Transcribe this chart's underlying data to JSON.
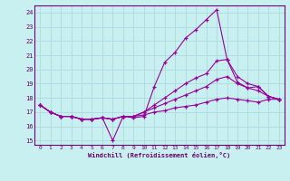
{
  "xlabel": "Windchill (Refroidissement éolien,°C)",
  "background_color": "#c8f0f0",
  "grid_color": "#b0dede",
  "line_color": "#990099",
  "xlim": [
    -0.5,
    23.5
  ],
  "ylim": [
    14.7,
    24.5
  ],
  "yticks": [
    15,
    16,
    17,
    18,
    19,
    20,
    21,
    22,
    23,
    24
  ],
  "xticks": [
    0,
    1,
    2,
    3,
    4,
    5,
    6,
    7,
    8,
    9,
    10,
    11,
    12,
    13,
    14,
    15,
    16,
    17,
    18,
    19,
    20,
    21,
    22,
    23
  ],
  "series": [
    {
      "x": [
        0,
        1,
        2,
        3,
        4,
        5,
        6,
        7,
        8,
        9,
        10,
        11,
        12,
        13,
        14,
        15,
        16,
        17,
        18,
        19,
        20,
        21,
        22,
        23
      ],
      "y": [
        17.5,
        17.0,
        16.7,
        16.7,
        16.5,
        16.5,
        16.6,
        15.0,
        16.7,
        16.6,
        16.7,
        18.8,
        20.5,
        21.2,
        22.2,
        22.8,
        23.5,
        24.2,
        20.7,
        19.1,
        18.7,
        18.8,
        18.1,
        17.9
      ]
    },
    {
      "x": [
        0,
        1,
        2,
        3,
        4,
        5,
        6,
        7,
        8,
        9,
        10,
        11,
        12,
        13,
        14,
        15,
        16,
        17,
        18,
        19,
        20,
        21,
        22,
        23
      ],
      "y": [
        17.5,
        17.0,
        16.7,
        16.7,
        16.5,
        16.5,
        16.6,
        16.5,
        16.7,
        16.7,
        17.0,
        17.5,
        18.0,
        18.5,
        19.0,
        19.4,
        19.7,
        20.6,
        20.7,
        19.5,
        19.0,
        18.8,
        18.1,
        17.9
      ]
    },
    {
      "x": [
        0,
        1,
        2,
        3,
        4,
        5,
        6,
        7,
        8,
        9,
        10,
        11,
        12,
        13,
        14,
        15,
        16,
        17,
        18,
        19,
        20,
        21,
        22,
        23
      ],
      "y": [
        17.5,
        17.0,
        16.7,
        16.7,
        16.5,
        16.5,
        16.6,
        16.5,
        16.7,
        16.7,
        17.0,
        17.3,
        17.6,
        17.9,
        18.2,
        18.5,
        18.8,
        19.3,
        19.5,
        19.0,
        18.7,
        18.5,
        18.1,
        17.9
      ]
    },
    {
      "x": [
        0,
        1,
        2,
        3,
        4,
        5,
        6,
        7,
        8,
        9,
        10,
        11,
        12,
        13,
        14,
        15,
        16,
        17,
        18,
        19,
        20,
        21,
        22,
        23
      ],
      "y": [
        17.5,
        17.0,
        16.7,
        16.7,
        16.5,
        16.5,
        16.6,
        16.5,
        16.7,
        16.7,
        16.8,
        17.0,
        17.1,
        17.3,
        17.4,
        17.5,
        17.7,
        17.9,
        18.0,
        17.9,
        17.8,
        17.7,
        17.9,
        17.9
      ]
    }
  ]
}
